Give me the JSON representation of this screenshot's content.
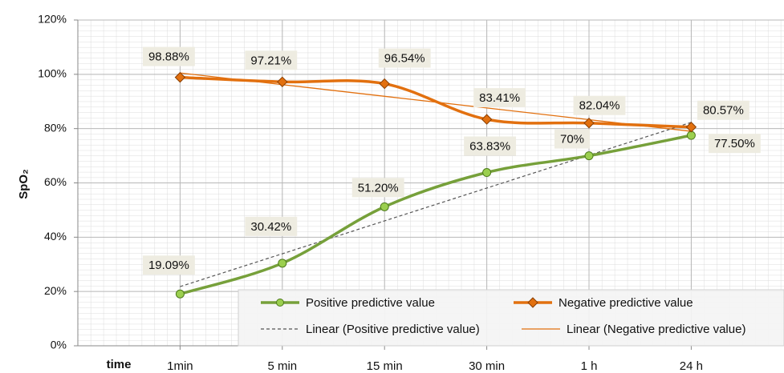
{
  "chart_data": {
    "type": "line",
    "y_label": "SpO₂",
    "x_label": "time",
    "categories": [
      "1min",
      "5 min",
      "15 min",
      "30 min",
      "1 h",
      "24 h"
    ],
    "ylim": [
      0,
      120
    ],
    "yticks": [
      {
        "value": 0,
        "label": "0%"
      },
      {
        "value": 20,
        "label": "20%"
      },
      {
        "value": 40,
        "label": "40%"
      },
      {
        "value": 60,
        "label": "60%"
      },
      {
        "value": 80,
        "label": "80%"
      },
      {
        "value": 100,
        "label": "100%"
      },
      {
        "value": 120,
        "label": "120%"
      }
    ],
    "grid": true,
    "legend": "bottom-right",
    "series": [
      {
        "name": "Positive predictive value",
        "color": "#76a03a",
        "marker": "circle",
        "smooth": true,
        "values": [
          19.09,
          30.42,
          51.2,
          63.83,
          70,
          77.5
        ],
        "value_labels": [
          "19.09%",
          "30.42%",
          "51.20%",
          "63.83%",
          "70%",
          "77.50%"
        ]
      },
      {
        "name": "Negative predictive value",
        "color": "#e2700f",
        "marker": "diamond",
        "smooth": true,
        "values": [
          98.88,
          97.21,
          96.54,
          83.41,
          82.04,
          80.57
        ],
        "value_labels": [
          "98.88%",
          "97.21%",
          "96.54%",
          "83.41%",
          "82.04%",
          "80.57%"
        ]
      },
      {
        "name": "Linear (Positive predictive value)",
        "color": "#555555",
        "dashed": true,
        "trendline": true,
        "values": [
          21.8,
          33.9,
          46.0,
          58.1,
          70.2,
          82.3
        ]
      },
      {
        "name": "Linear (Negative predictive value)",
        "color": "#e2700f",
        "trendline": true,
        "values": [
          100.5,
          96.2,
          91.9,
          87.6,
          83.3,
          79.0
        ]
      }
    ]
  }
}
